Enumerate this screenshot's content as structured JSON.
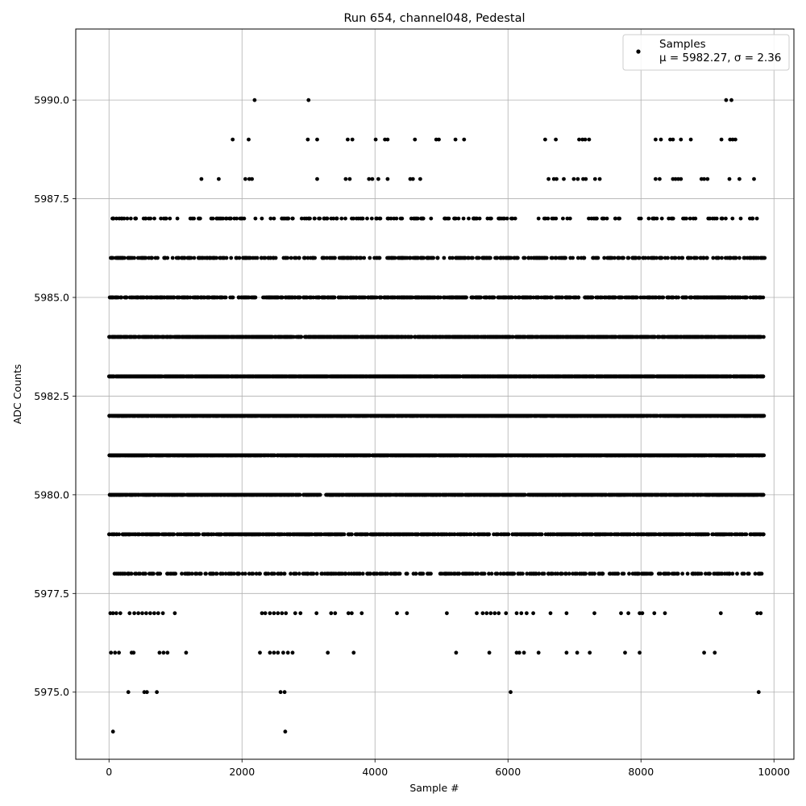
{
  "chart_data": {
    "type": "scatter",
    "title": "Run 654, channel048, Pedestal",
    "xlabel": "Sample #",
    "ylabel": "ADC Counts",
    "xlim": [
      -500,
      10300
    ],
    "ylim": [
      5973.3,
      5991.8
    ],
    "xticks": [
      0,
      2000,
      4000,
      6000,
      8000,
      10000
    ],
    "xtick_labels": [
      "0",
      "2000",
      "4000",
      "6000",
      "8000",
      "10000"
    ],
    "yticks": [
      5975.0,
      5977.5,
      5980.0,
      5982.5,
      5985.0,
      5987.5,
      5990.0
    ],
    "ytick_labels": [
      "5975.0",
      "5977.5",
      "5980.0",
      "5982.5",
      "5985.0",
      "5987.5",
      "5990.0"
    ],
    "grid": true,
    "legend_position": "top-right",
    "series": [
      {
        "name": "Samples",
        "color": "#000000",
        "n_samples": 9850,
        "level_density": {
          "5974": 0.0003,
          "5975": 0.0012,
          "5976": 0.005,
          "5977": 0.012,
          "5978": 0.04,
          "5979": 0.08,
          "5980": 0.13,
          "5981": 0.16,
          "5982": 0.17,
          "5983": 0.16,
          "5984": 0.12,
          "5985": 0.07,
          "5986": 0.04,
          "5987": 0.02,
          "5988": 0.006,
          "5989": 0.004,
          "5990": 0.0006
        },
        "points": [
          [
            60,
            5974
          ],
          [
            2650,
            5974
          ],
          [
            290,
            5975
          ],
          [
            530,
            5975
          ],
          [
            570,
            5975
          ],
          [
            720,
            5975
          ],
          [
            2580,
            5975
          ],
          [
            2640,
            5975
          ],
          [
            6040,
            5975
          ],
          [
            9770,
            5975
          ],
          [
            30,
            5976
          ],
          [
            90,
            5976
          ],
          [
            150,
            5976
          ],
          [
            340,
            5976
          ],
          [
            370,
            5976
          ],
          [
            760,
            5976
          ],
          [
            820,
            5976
          ],
          [
            880,
            5976
          ],
          [
            1160,
            5976
          ],
          [
            2270,
            5976
          ],
          [
            2420,
            5976
          ],
          [
            2480,
            5976
          ],
          [
            2540,
            5976
          ],
          [
            2620,
            5976
          ],
          [
            2690,
            5976
          ],
          [
            2760,
            5976
          ],
          [
            3290,
            5976
          ],
          [
            3680,
            5976
          ],
          [
            5220,
            5976
          ],
          [
            5720,
            5976
          ],
          [
            6130,
            5976
          ],
          [
            6170,
            5976
          ],
          [
            6240,
            5976
          ],
          [
            6460,
            5976
          ],
          [
            6880,
            5976
          ],
          [
            7040,
            5976
          ],
          [
            7230,
            5976
          ],
          [
            7760,
            5976
          ],
          [
            7980,
            5976
          ],
          [
            8950,
            5976
          ],
          [
            9110,
            5976
          ],
          [
            20,
            5977
          ],
          [
            60,
            5977
          ],
          [
            110,
            5977
          ],
          [
            170,
            5977
          ],
          [
            310,
            5977
          ],
          [
            380,
            5977
          ],
          [
            440,
            5977
          ],
          [
            500,
            5977
          ],
          [
            560,
            5977
          ],
          [
            620,
            5977
          ],
          [
            680,
            5977
          ],
          [
            740,
            5977
          ],
          [
            810,
            5977
          ],
          [
            990,
            5977
          ],
          [
            2300,
            5977
          ],
          [
            2350,
            5977
          ],
          [
            2420,
            5977
          ],
          [
            2480,
            5977
          ],
          [
            2540,
            5977
          ],
          [
            2600,
            5977
          ],
          [
            2660,
            5977
          ],
          [
            2800,
            5977
          ],
          [
            2880,
            5977
          ],
          [
            3120,
            5977
          ],
          [
            3340,
            5977
          ],
          [
            3400,
            5977
          ],
          [
            3600,
            5977
          ],
          [
            3650,
            5977
          ],
          [
            3800,
            5977
          ],
          [
            4330,
            5977
          ],
          [
            4480,
            5977
          ],
          [
            5080,
            5977
          ],
          [
            5530,
            5977
          ],
          [
            5620,
            5977
          ],
          [
            5680,
            5977
          ],
          [
            5740,
            5977
          ],
          [
            5800,
            5977
          ],
          [
            5860,
            5977
          ],
          [
            5970,
            5977
          ],
          [
            6130,
            5977
          ],
          [
            6200,
            5977
          ],
          [
            6280,
            5977
          ],
          [
            6380,
            5977
          ],
          [
            6640,
            5977
          ],
          [
            6880,
            5977
          ],
          [
            7300,
            5977
          ],
          [
            7700,
            5977
          ],
          [
            7810,
            5977
          ],
          [
            7980,
            5977
          ],
          [
            8020,
            5977
          ],
          [
            8200,
            5977
          ],
          [
            8360,
            5977
          ],
          [
            9200,
            5977
          ],
          [
            9750,
            5977
          ],
          [
            9800,
            5977
          ],
          [
            2190,
            5990
          ],
          [
            3000,
            5990
          ],
          [
            9280,
            5990
          ],
          [
            9360,
            5990
          ],
          [
            1860,
            5989
          ],
          [
            2100,
            5989
          ],
          [
            2990,
            5989
          ],
          [
            3130,
            5989
          ],
          [
            3590,
            5989
          ],
          [
            3660,
            5989
          ],
          [
            4010,
            5989
          ],
          [
            4150,
            5989
          ],
          [
            4190,
            5989
          ],
          [
            4600,
            5989
          ],
          [
            4920,
            5989
          ],
          [
            4960,
            5989
          ],
          [
            5210,
            5989
          ],
          [
            5340,
            5989
          ],
          [
            6560,
            5989
          ],
          [
            6720,
            5989
          ],
          [
            7070,
            5989
          ],
          [
            7120,
            5989
          ],
          [
            7160,
            5989
          ],
          [
            7220,
            5989
          ],
          [
            8220,
            5989
          ],
          [
            8300,
            5989
          ],
          [
            8440,
            5989
          ],
          [
            8480,
            5989
          ],
          [
            8600,
            5989
          ],
          [
            8750,
            5989
          ],
          [
            9210,
            5989
          ],
          [
            9340,
            5989
          ],
          [
            9380,
            5989
          ],
          [
            9420,
            5989
          ],
          [
            1390,
            5988
          ],
          [
            1650,
            5988
          ],
          [
            2050,
            5988
          ],
          [
            2110,
            5988
          ],
          [
            2150,
            5988
          ],
          [
            3130,
            5988
          ],
          [
            3560,
            5988
          ],
          [
            3620,
            5988
          ],
          [
            3910,
            5988
          ],
          [
            3960,
            5988
          ],
          [
            4050,
            5988
          ],
          [
            4190,
            5988
          ],
          [
            4530,
            5988
          ],
          [
            4570,
            5988
          ],
          [
            4680,
            5988
          ],
          [
            6610,
            5988
          ],
          [
            6690,
            5988
          ],
          [
            6730,
            5988
          ],
          [
            6840,
            5988
          ],
          [
            6990,
            5988
          ],
          [
            7050,
            5988
          ],
          [
            7130,
            5988
          ],
          [
            7170,
            5988
          ],
          [
            7310,
            5988
          ],
          [
            7380,
            5988
          ],
          [
            8220,
            5988
          ],
          [
            8280,
            5988
          ],
          [
            8480,
            5988
          ],
          [
            8520,
            5988
          ],
          [
            8560,
            5988
          ],
          [
            8600,
            5988
          ],
          [
            8910,
            5988
          ],
          [
            8950,
            5988
          ],
          [
            9000,
            5988
          ],
          [
            9330,
            5988
          ],
          [
            9480,
            5988
          ],
          [
            9700,
            5988
          ],
          [
            9860,
            5986
          ]
        ]
      }
    ],
    "legend": {
      "label": "Samples",
      "stats": "μ = 5982.27, σ = 2.36",
      "mean": 5982.27,
      "sigma": 2.36
    }
  }
}
